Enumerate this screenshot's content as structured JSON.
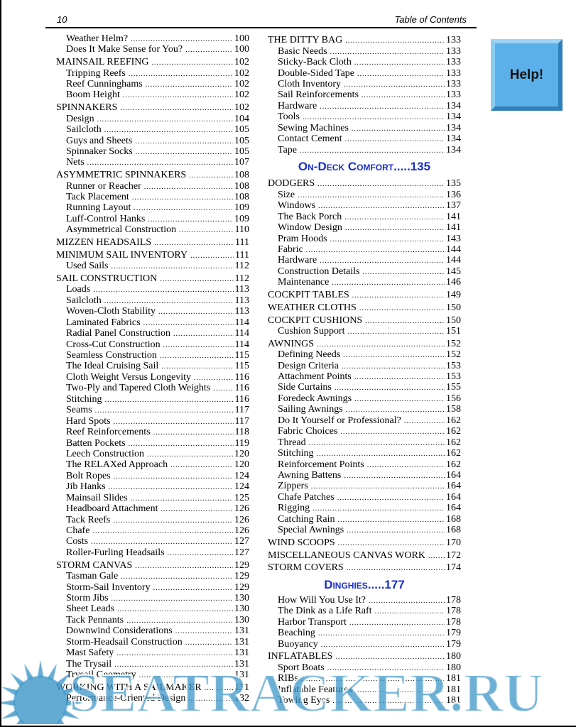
{
  "header": {
    "page_number": "10",
    "title": "Table of Contents"
  },
  "help_button": {
    "label": "Help!",
    "color": "#5cb0ea"
  },
  "watermark": {
    "text": "SEATRACKER.RU",
    "color": "#3c96c8"
  },
  "left_column": [
    {
      "t": "Weather Helm?",
      "p": "100",
      "lvl": 2
    },
    {
      "t": "Does It Make Sense for You?",
      "p": "100",
      "lvl": 2
    },
    {
      "t": " MAINSAIL REEFING",
      "p": "102",
      "lvl": 1
    },
    {
      "t": "Tripping Reefs",
      "p": "102",
      "lvl": 2
    },
    {
      "t": "Reef Cunninghams",
      "p": "102",
      "lvl": 2
    },
    {
      "t": "Boom Height",
      "p": "102",
      "lvl": 2
    },
    {
      "t": "SPINNAKERS",
      "p": "102",
      "lvl": 1
    },
    {
      "t": "Design",
      "p": "104",
      "lvl": 2
    },
    {
      "t": "Sailcloth",
      "p": "105",
      "lvl": 2
    },
    {
      "t": "Guys and Sheets",
      "p": "105",
      "lvl": 2
    },
    {
      "t": "Spinnaker Socks",
      "p": "105",
      "lvl": 2
    },
    {
      "t": "Nets",
      "p": "107",
      "lvl": 2
    },
    {
      "t": "ASYMMETRIC SPINNAKERS",
      "p": "108",
      "lvl": 1
    },
    {
      "t": "Runner or Reacher",
      "p": "108",
      "lvl": 2
    },
    {
      "t": "Tack Placement",
      "p": "108",
      "lvl": 2
    },
    {
      "t": "Running Layout",
      "p": "109",
      "lvl": 2
    },
    {
      "t": "Luff-Control Hanks",
      "p": "109",
      "lvl": 2
    },
    {
      "t": "Asymmetrical Construction",
      "p": "110",
      "lvl": 2
    },
    {
      "t": "MIZZEN HEADSAILS",
      "p": "111",
      "lvl": 1
    },
    {
      "t": "MINIMUM SAIL INVENTORY",
      "p": "111",
      "lvl": 1
    },
    {
      "t": "Used Sails",
      "p": "112",
      "lvl": 2
    },
    {
      "t": "SAIL CONSTRUCTION",
      "p": "112",
      "lvl": 1
    },
    {
      "t": "Loads",
      "p": "113",
      "lvl": 2
    },
    {
      "t": "Sailcloth",
      "p": "113",
      "lvl": 2
    },
    {
      "t": "Woven-Cloth Stability",
      "p": "113",
      "lvl": 2
    },
    {
      "t": "Laminated Fabrics",
      "p": "114",
      "lvl": 2
    },
    {
      "t": "Radial Panel Construction",
      "p": "114",
      "lvl": 2
    },
    {
      "t": "Cross-Cut Construction",
      "p": "114",
      "lvl": 2
    },
    {
      "t": "Seamless Construction",
      "p": "115",
      "lvl": 2
    },
    {
      "t": "The Ideal Cruising Sail",
      "p": "115",
      "lvl": 2
    },
    {
      "t": "Cloth Weight Versus Longevity",
      "p": "116",
      "lvl": 2
    },
    {
      "t": "Two-Ply and Tapered Cloth Weights",
      "p": "116",
      "lvl": 2
    },
    {
      "t": "Stitching",
      "p": "116",
      "lvl": 2
    },
    {
      "t": "Seams",
      "p": "117",
      "lvl": 2
    },
    {
      "t": "Hard Spots",
      "p": "117",
      "lvl": 2
    },
    {
      "t": "Reef Reinforcements",
      "p": "118",
      "lvl": 2
    },
    {
      "t": "Batten Pockets",
      "p": "119",
      "lvl": 2
    },
    {
      "t": "Leech Construction",
      "p": "120",
      "lvl": 2
    },
    {
      "t": "The RELAXed Approach",
      "p": "120",
      "lvl": 2
    },
    {
      "t": "Bolt Ropes",
      "p": "124",
      "lvl": 2
    },
    {
      "t": "Jib Hanks",
      "p": "124",
      "lvl": 2
    },
    {
      "t": "Mainsail Slides",
      "p": "125",
      "lvl": 2
    },
    {
      "t": "Headboard Attachment",
      "p": "126",
      "lvl": 2
    },
    {
      "t": "Tack Reefs",
      "p": "126",
      "lvl": 2
    },
    {
      "t": "Chafe",
      "p": "126",
      "lvl": 2
    },
    {
      "t": "Costs",
      "p": "127",
      "lvl": 2
    },
    {
      "t": "Roller-Furling Headsails",
      "p": "127",
      "lvl": 2
    },
    {
      "t": "STORM CANVAS",
      "p": "129",
      "lvl": 1
    },
    {
      "t": "Tasman Gale",
      "p": "129",
      "lvl": 2
    },
    {
      "t": "Storm-Sail Inventory",
      "p": "129",
      "lvl": 2
    },
    {
      "t": "Storm Jibs",
      "p": "130",
      "lvl": 2
    },
    {
      "t": "Sheet Leads",
      "p": "130",
      "lvl": 2
    },
    {
      "t": "Tack Pennants",
      "p": "130",
      "lvl": 2
    },
    {
      "t": "Downwind Considerations",
      "p": "131",
      "lvl": 2
    },
    {
      "t": "Storm-Headsail Construction",
      "p": "131",
      "lvl": 2
    },
    {
      "t": "Mast Safety",
      "p": "131",
      "lvl": 2
    },
    {
      "t": "The Trysail",
      "p": "131",
      "lvl": 2
    },
    {
      "t": "Trysail Geometry",
      "p": "131",
      "lvl": 2
    },
    {
      "t": "WORKING WITH A SAILMAKER",
      "p": "131",
      "lvl": 1
    },
    {
      "t": "Performance-Oriented Design",
      "p": "132",
      "lvl": 2
    }
  ],
  "right_column": [
    {
      "t": "THE DITTY BAG",
      "p": "133",
      "lvl": 1
    },
    {
      "t": "Basic Needs",
      "p": "133",
      "lvl": 2
    },
    {
      "t": "Sticky-Back Cloth",
      "p": "133",
      "lvl": 2
    },
    {
      "t": "Double-Sided Tape",
      "p": "133",
      "lvl": 2
    },
    {
      "t": "Cloth Inventory",
      "p": "133",
      "lvl": 2
    },
    {
      "t": "Sail Reinforcements",
      "p": "133",
      "lvl": 2
    },
    {
      "t": "Hardware",
      "p": "134",
      "lvl": 2
    },
    {
      "t": "Tools",
      "p": "134",
      "lvl": 2
    },
    {
      "t": "Sewing Machines",
      "p": "134",
      "lvl": 2
    },
    {
      "t": "Contact Cement",
      "p": "134",
      "lvl": 2
    },
    {
      "t": "Tape",
      "p": "134",
      "lvl": 2
    },
    {
      "t": "On-Deck Comfort.....135",
      "lvl": 0
    },
    {
      "t": "DODGERS",
      "p": "135",
      "lvl": 1
    },
    {
      "t": "Size",
      "p": "136",
      "lvl": 2
    },
    {
      "t": "Windows",
      "p": "137",
      "lvl": 2
    },
    {
      "t": "The Back Porch",
      "p": "141",
      "lvl": 2
    },
    {
      "t": "Window Design",
      "p": "141",
      "lvl": 2
    },
    {
      "t": "Pram Hoods",
      "p": "143",
      "lvl": 2
    },
    {
      "t": "Fabric",
      "p": "144",
      "lvl": 2
    },
    {
      "t": "Hardware",
      "p": "144",
      "lvl": 2
    },
    {
      "t": "Construction Details",
      "p": "145",
      "lvl": 2
    },
    {
      "t": "Maintenance",
      "p": "146",
      "lvl": 2
    },
    {
      "t": "COCKPIT TABLES",
      "p": "149",
      "lvl": 1
    },
    {
      "t": "WEATHER CLOTHS",
      "p": "150",
      "lvl": 1
    },
    {
      "t": "COCKPIT CUSHIONS",
      "p": "150",
      "lvl": 1
    },
    {
      "t": "Cushion Support",
      "p": "151",
      "lvl": 2
    },
    {
      "t": "AWNINGS",
      "p": "152",
      "lvl": 1
    },
    {
      "t": "Defining Needs",
      "p": "152",
      "lvl": 2
    },
    {
      "t": "Design Criteria",
      "p": "153",
      "lvl": 2
    },
    {
      "t": "Attachment Points",
      "p": "153",
      "lvl": 2
    },
    {
      "t": "Side Curtains",
      "p": "155",
      "lvl": 2
    },
    {
      "t": "Foredeck Awnings",
      "p": "156",
      "lvl": 2
    },
    {
      "t": "Sailing Awnings",
      "p": "158",
      "lvl": 2
    },
    {
      "t": "Do It Yourself or Professional?",
      "p": "162",
      "lvl": 2
    },
    {
      "t": "Fabric Choices",
      "p": "162",
      "lvl": 2
    },
    {
      "t": "Thread",
      "p": "162",
      "lvl": 2
    },
    {
      "t": "Stitching",
      "p": "162",
      "lvl": 2
    },
    {
      "t": "Reinforcement Points",
      "p": "162",
      "lvl": 2
    },
    {
      "t": "Awning Battens",
      "p": "164",
      "lvl": 2
    },
    {
      "t": "Zippers",
      "p": "164",
      "lvl": 2
    },
    {
      "t": "Chafe Patches",
      "p": "164",
      "lvl": 2
    },
    {
      "t": "Rigging",
      "p": "164",
      "lvl": 2
    },
    {
      "t": "Catching Rain",
      "p": "168",
      "lvl": 2
    },
    {
      "t": "Special Awnings",
      "p": "168",
      "lvl": 2
    },
    {
      "t": "WIND SCOOPS",
      "p": "170",
      "lvl": 1
    },
    {
      "t": "MISCELLANEOUS CANVAS WORK",
      "p": "172",
      "lvl": 1
    },
    {
      "t": "STORM COVERS",
      "p": "174",
      "lvl": 1
    },
    {
      "t": "Dinghies.....177",
      "lvl": 0
    },
    {
      "t": "How Will You Use It?",
      "p": "178",
      "lvl": 2
    },
    {
      "t": "The Dink as a Life Raft",
      "p": "178",
      "lvl": 2
    },
    {
      "t": "Harbor Transport",
      "p": "178",
      "lvl": 2
    },
    {
      "t": "Beaching",
      "p": "179",
      "lvl": 2
    },
    {
      "t": "Buoyancy",
      "p": "179",
      "lvl": 2
    },
    {
      "t": "INFLATABLES",
      "p": "180",
      "lvl": 1
    },
    {
      "t": "Sport Boats",
      "p": "180",
      "lvl": 2
    },
    {
      "t": "RIBs",
      "p": "181",
      "lvl": 2
    },
    {
      "t": "Inflatable Features",
      "p": "181",
      "lvl": 2
    },
    {
      "t": "Towing Eyes",
      "p": "181",
      "lvl": 2
    }
  ]
}
